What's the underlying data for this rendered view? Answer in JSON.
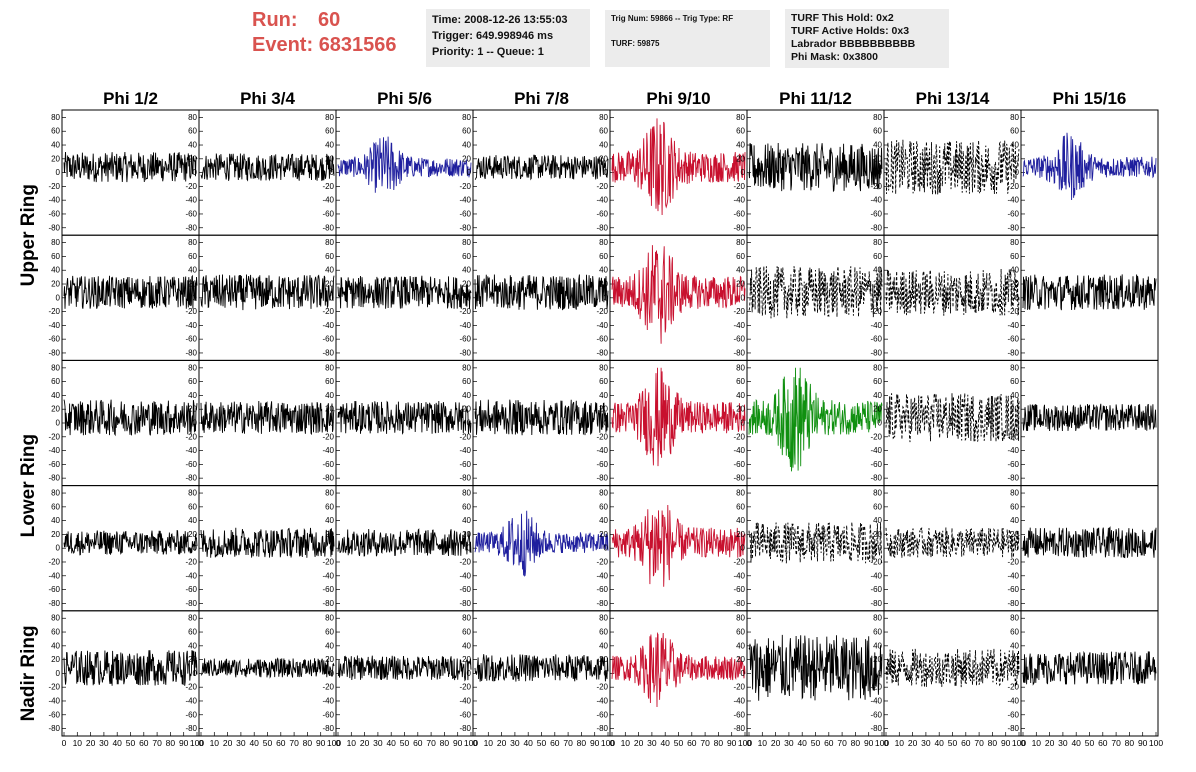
{
  "header": {
    "run_label": "Run:",
    "run_value": "60",
    "event_label": "Event:",
    "event_value": "6831566",
    "time": "Time: 2008-12-26 13:55:03",
    "trigger": "Trigger: 649.998946 ms",
    "priority": "Priority: 1 -- Queue: 1",
    "trig_num": "Trig Num: 59866 -- Trig Type: RF",
    "turf": "TURF: 59875",
    "turf_hold": "TURF This Hold: 0x2",
    "turf_active": "TURF Active Holds: 0x3",
    "labrador": "Labrador BBBBBBBBBB",
    "phi_mask": "Phi Mask: 0x3800"
  },
  "chart_data": {
    "type": "line",
    "columns": [
      "Phi 1/2",
      "Phi 3/4",
      "Phi 5/6",
      "Phi 7/8",
      "Phi 9/10",
      "Phi 11/12",
      "Phi 13/14",
      "Phi 15/16"
    ],
    "rows": [
      "Upper Ring",
      "Lower Ring",
      "Nadir Ring"
    ],
    "xlim": [
      0,
      100
    ],
    "ylim": [
      -85,
      85
    ],
    "y_ticks": [
      -80,
      -60,
      -40,
      -20,
      0,
      20,
      40,
      60,
      80
    ],
    "x_ticks": [
      0,
      10,
      20,
      30,
      40,
      50,
      60,
      70,
      80,
      90,
      100
    ],
    "colors": {
      "red": "#c8102e",
      "blue": "#1f1f9e",
      "green": "#109010",
      "black": "#000000"
    },
    "panel_colors": [
      [
        "black",
        "black",
        "blue",
        "black",
        "red",
        "black",
        "dashed",
        "blue"
      ],
      [
        "black",
        "black",
        "black",
        "black",
        "red",
        "dashed",
        "dashed",
        "black"
      ],
      [
        "black",
        "black",
        "black",
        "black",
        "red",
        "green",
        "dashed",
        "black"
      ],
      [
        "black",
        "black",
        "black",
        "blue",
        "red",
        "dashed",
        "dashed",
        "black"
      ],
      [
        "black",
        "black",
        "black",
        "black",
        "red",
        "black",
        "dashed",
        "black"
      ]
    ],
    "panel_amplitudes": [
      [
        22,
        20,
        28,
        18,
        45,
        35,
        40,
        30
      ],
      [
        24,
        26,
        24,
        26,
        48,
        38,
        34,
        26
      ],
      [
        26,
        24,
        24,
        26,
        46,
        50,
        36,
        20
      ],
      [
        18,
        22,
        20,
        30,
        44,
        30,
        22,
        22
      ],
      [
        26,
        14,
        18,
        20,
        36,
        48,
        28,
        24
      ]
    ]
  }
}
